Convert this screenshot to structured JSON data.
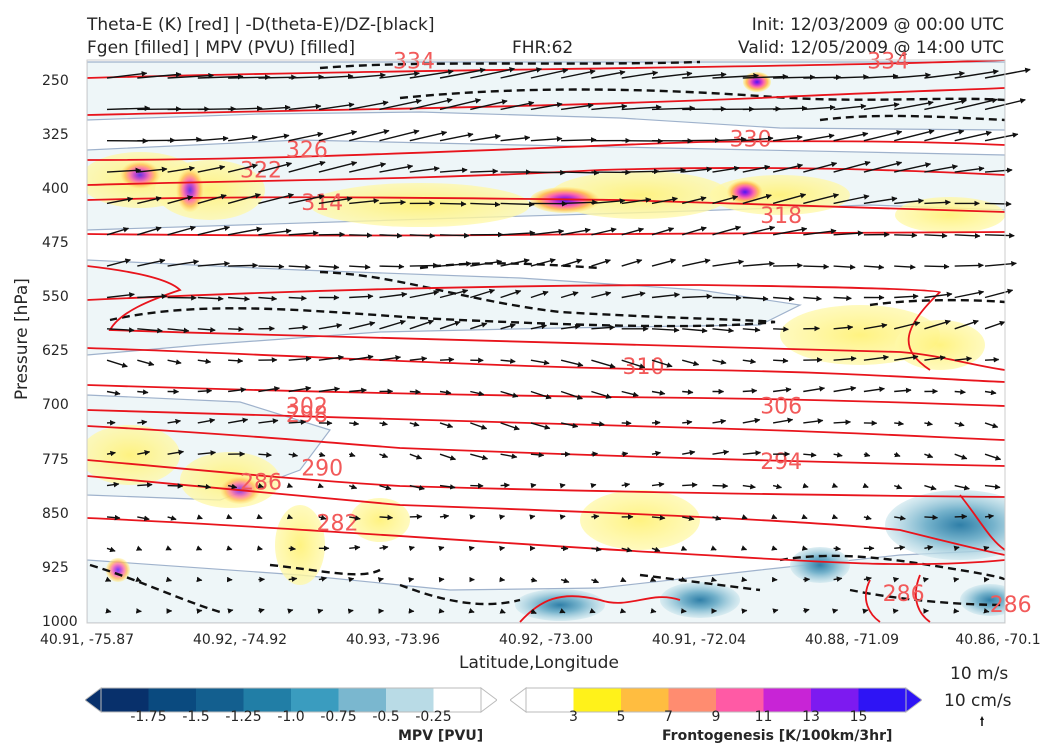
{
  "header": {
    "line1_left": "Theta-E (K) [red] | -D(theta-E)/DZ-[black]",
    "line2_left": "Fgen [filled] | MPV (PVU) [filled]",
    "fhr": "FHR:62",
    "init": "Init: 12/03/2009 @ 00:00 UTC",
    "valid": "Valid: 12/05/2009 @ 14:00 UTC"
  },
  "chart_data": {
    "type": "cross-section",
    "xlabel": "Latitude,Longitude",
    "ylabel": "Pressure [hPa]",
    "y_axis": {
      "inverted": true,
      "range": [
        220,
        1000
      ]
    },
    "x_ticks": [
      "40.91, -75.87",
      "40.92, -74.92",
      "40.93, -73.96",
      "40.92, -73.00",
      "40.91, -72.04",
      "40.88, -71.09",
      "40.86, -70.1"
    ],
    "y_ticks": [
      250,
      325,
      400,
      475,
      550,
      625,
      700,
      775,
      850,
      925,
      1000
    ],
    "theta_e_contours": {
      "color": "#e8141c",
      "labels": [
        {
          "value": "326",
          "x_index": 1.3,
          "p": 345
        },
        {
          "value": "322",
          "x_index": 1.0,
          "p": 373
        },
        {
          "value": "314",
          "x_index": 1.4,
          "p": 418
        },
        {
          "value": "330",
          "x_index": 4.2,
          "p": 330
        },
        {
          "value": "318",
          "x_index": 4.4,
          "p": 436
        },
        {
          "value": "334",
          "x_index": 2.0,
          "p": 222
        },
        {
          "value": "334",
          "x_index": 5.1,
          "p": 222
        },
        {
          "value": "310",
          "x_index": 3.5,
          "p": 645
        },
        {
          "value": "306",
          "x_index": 4.4,
          "p": 700
        },
        {
          "value": "302",
          "x_index": 1.3,
          "p": 700
        },
        {
          "value": "298",
          "x_index": 1.3,
          "p": 712
        },
        {
          "value": "294",
          "x_index": 4.4,
          "p": 777
        },
        {
          "value": "290",
          "x_index": 1.4,
          "p": 786
        },
        {
          "value": "286",
          "x_index": 1.0,
          "p": 805
        },
        {
          "value": "282",
          "x_index": 1.5,
          "p": 862
        },
        {
          "value": "286",
          "x_index": 5.2,
          "p": 960
        },
        {
          "value": "286",
          "x_index": 5.9,
          "p": 975
        }
      ]
    },
    "wind_reference": {
      "horizontal": "10 m/s",
      "vertical": "10 cm/s"
    },
    "colorbar_mpv": {
      "label": "MPV [PVU]",
      "ticks": [
        "-1.75",
        "-1.5",
        "-1.25",
        "-1.0",
        "-0.75",
        "-0.5",
        "-0.25"
      ],
      "colors": [
        "#08306b",
        "#0a4a7f",
        "#135f8f",
        "#217ea6",
        "#3a9cbf",
        "#7ab7cf",
        "#b9dbe6",
        "#ffffff"
      ]
    },
    "colorbar_fgen": {
      "label": "Frontogenesis [K/100km/3hr]",
      "ticks": [
        "3",
        "5",
        "7",
        "9",
        "11",
        "13",
        "15"
      ],
      "colors": [
        "#ffffff",
        "#fff21a",
        "#ffbd40",
        "#ff8c70",
        "#ff5aa5",
        "#c824d6",
        "#7d1af0",
        "#2e14f5"
      ]
    }
  }
}
